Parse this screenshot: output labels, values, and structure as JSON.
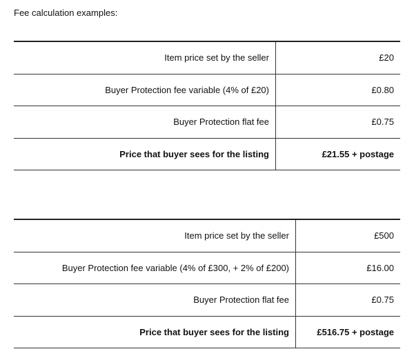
{
  "title": "Fee calculation examples:",
  "examples": [
    {
      "rows": [
        {
          "label": "Item price set by the seller",
          "value": "£20"
        },
        {
          "label": "Buyer Protection fee variable (4% of £20)",
          "value": "£0.80"
        },
        {
          "label": "Buyer Protection flat fee",
          "value": "£0.75"
        },
        {
          "label": "Price that buyer sees for the listing",
          "value": "£21.55 + postage"
        }
      ]
    },
    {
      "rows": [
        {
          "label": "Item price set by the seller",
          "value": "£500"
        },
        {
          "label": "Buyer Protection fee variable (4% of £300, + 2% of £200)",
          "value": "£16.00"
        },
        {
          "label": "Buyer Protection flat fee",
          "value": "£0.75"
        },
        {
          "label": "Price that buyer sees for the listing",
          "value": "£516.75 + postage"
        }
      ]
    }
  ]
}
